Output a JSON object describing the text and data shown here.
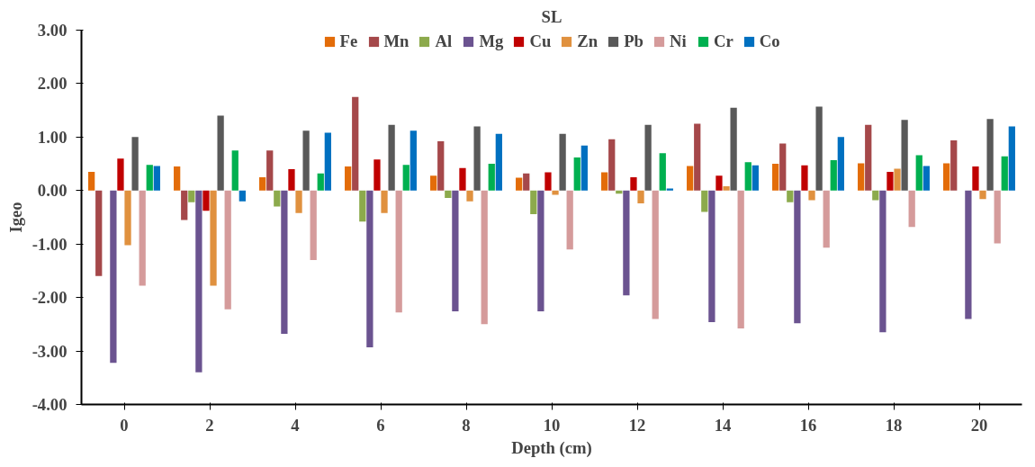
{
  "chart_data": {
    "type": "bar",
    "title": "SL",
    "xlabel": "Depth (cm)",
    "ylabel": "Igeo",
    "categories": [
      "0",
      "2",
      "4",
      "6",
      "8",
      "10",
      "12",
      "14",
      "16",
      "18",
      "20"
    ],
    "series": [
      {
        "name": "Fe",
        "color": "#e36c09",
        "values": [
          0.35,
          0.45,
          0.25,
          0.45,
          0.28,
          0.24,
          0.34,
          0.46,
          0.5,
          0.51,
          0.51
        ]
      },
      {
        "name": "Mn",
        "color": "#a5484a",
        "values": [
          -1.6,
          -0.55,
          0.75,
          1.75,
          0.92,
          0.32,
          0.96,
          1.25,
          0.88,
          1.23,
          0.94
        ]
      },
      {
        "name": "Al",
        "color": "#8caa4c",
        "values": [
          0,
          -0.22,
          -0.3,
          -0.58,
          -0.14,
          -0.44,
          -0.06,
          -0.4,
          -0.22,
          -0.18,
          0
        ]
      },
      {
        "name": "Mg",
        "color": "#6b5390",
        "values": [
          -3.22,
          -3.4,
          -2.68,
          -2.93,
          -2.26,
          -2.26,
          -1.96,
          -2.46,
          -2.48,
          -2.65,
          -2.4
        ]
      },
      {
        "name": "Cu",
        "color": "#c00000",
        "values": [
          0.6,
          -0.38,
          0.4,
          0.58,
          0.42,
          0.34,
          0.25,
          0.28,
          0.47,
          0.35,
          0.45
        ]
      },
      {
        "name": "Zn",
        "color": "#e0913f",
        "values": [
          -1.02,
          -1.78,
          -0.42,
          -0.42,
          -0.2,
          -0.08,
          -0.24,
          0.08,
          -0.18,
          0.41,
          -0.16
        ]
      },
      {
        "name": "Pb",
        "color": "#595959",
        "values": [
          1.0,
          1.4,
          1.12,
          1.23,
          1.2,
          1.06,
          1.23,
          1.55,
          1.57,
          1.32,
          1.34
        ]
      },
      {
        "name": "Ni",
        "color": "#d59b9b",
        "values": [
          -1.78,
          -2.22,
          -1.3,
          -2.28,
          -2.5,
          -1.1,
          -2.4,
          -2.58,
          -1.07,
          -0.68,
          -0.99
        ]
      },
      {
        "name": "Cr",
        "color": "#00b050",
        "values": [
          0.48,
          0.75,
          0.32,
          0.48,
          0.5,
          0.62,
          0.7,
          0.53,
          0.57,
          0.66,
          0.64
        ]
      },
      {
        "name": "Co",
        "color": "#0070c0",
        "values": [
          0.46,
          -0.2,
          1.08,
          1.12,
          1.06,
          0.84,
          0.04,
          0.47,
          1.0,
          0.46,
          1.2
        ]
      }
    ],
    "ylim": [
      -4,
      3
    ],
    "yticks": [
      {
        "value": 3,
        "label": "3.00"
      },
      {
        "value": 2,
        "label": "2.00"
      },
      {
        "value": 1,
        "label": "1.00"
      },
      {
        "value": 0,
        "label": "0.00"
      },
      {
        "value": -1,
        "label": "-1.00"
      },
      {
        "value": -2,
        "label": "-2.00"
      },
      {
        "value": -3,
        "label": "-3.00"
      },
      {
        "value": -4,
        "label": "-4.00"
      }
    ],
    "grid": false,
    "legend": "top"
  }
}
